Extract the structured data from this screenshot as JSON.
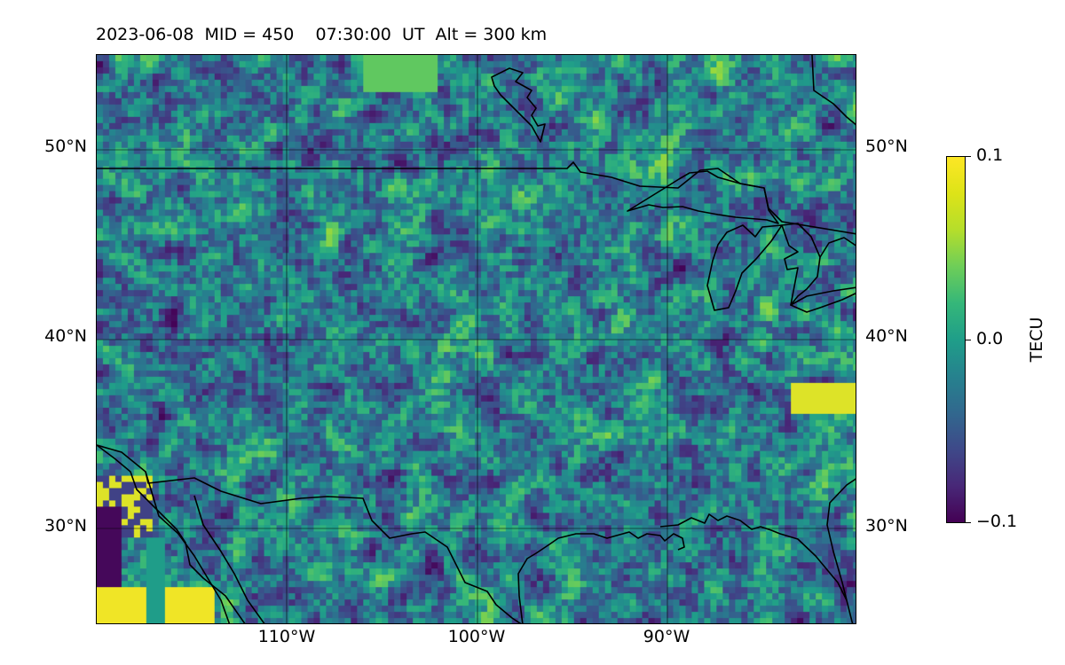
{
  "title": "2023-06-08  MID = 450    07:30:00  UT  Alt = 300 km",
  "map": {
    "lat_labels": [
      "50°N",
      "40°N",
      "30°N"
    ],
    "lon_labels": [
      "110°W",
      "100°W",
      "90°W"
    ],
    "gridlines": true,
    "coastlines": true,
    "features": [
      "Great Lakes",
      "US-Canada border",
      "US-Mexico border",
      "Gulf of Mexico coast",
      "Baja California"
    ]
  },
  "colorbar": {
    "label": "TECU",
    "colormap": "viridis",
    "max_label": "0.1",
    "mid_label": "0.0",
    "min_label": "−0.1",
    "colors": [
      "#440154",
      "#3e4989",
      "#26828e",
      "#35b779",
      "#fde725"
    ]
  }
}
